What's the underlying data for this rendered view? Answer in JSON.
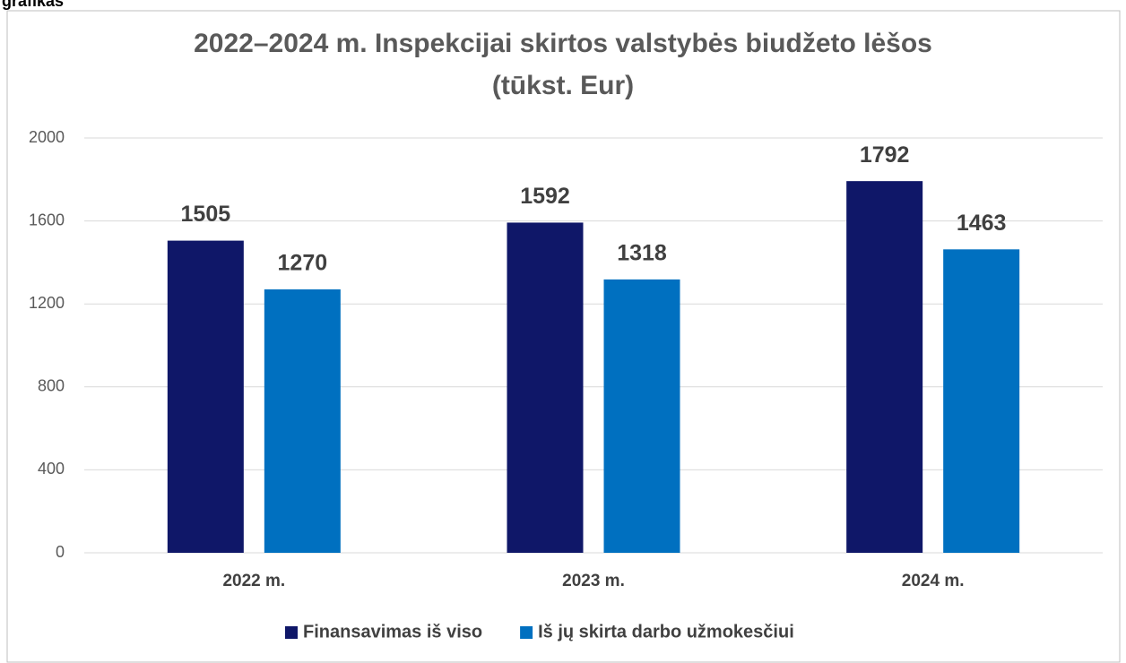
{
  "caption": "grafikas",
  "chart_data": {
    "type": "bar",
    "title": [
      "2022–2024 m. Inspekcijai skirtos valstybės biudžeto lėšos",
      "(tūkst. Eur)"
    ],
    "categories": [
      "2022 m.",
      "2023 m.",
      "2024 m."
    ],
    "series": [
      {
        "name": "Finansavimas iš viso",
        "color": "#0f1768",
        "values": [
          1505,
          1592,
          1792
        ]
      },
      {
        "name": "Iš jų skirta darbo užmokesčiui",
        "color": "#0070c0",
        "values": [
          1270,
          1318,
          1463
        ]
      }
    ],
    "ylim": [
      0,
      2000
    ],
    "yticks": [
      0,
      400,
      800,
      1200,
      1600,
      2000
    ],
    "grid": true,
    "legend": "bottom"
  }
}
